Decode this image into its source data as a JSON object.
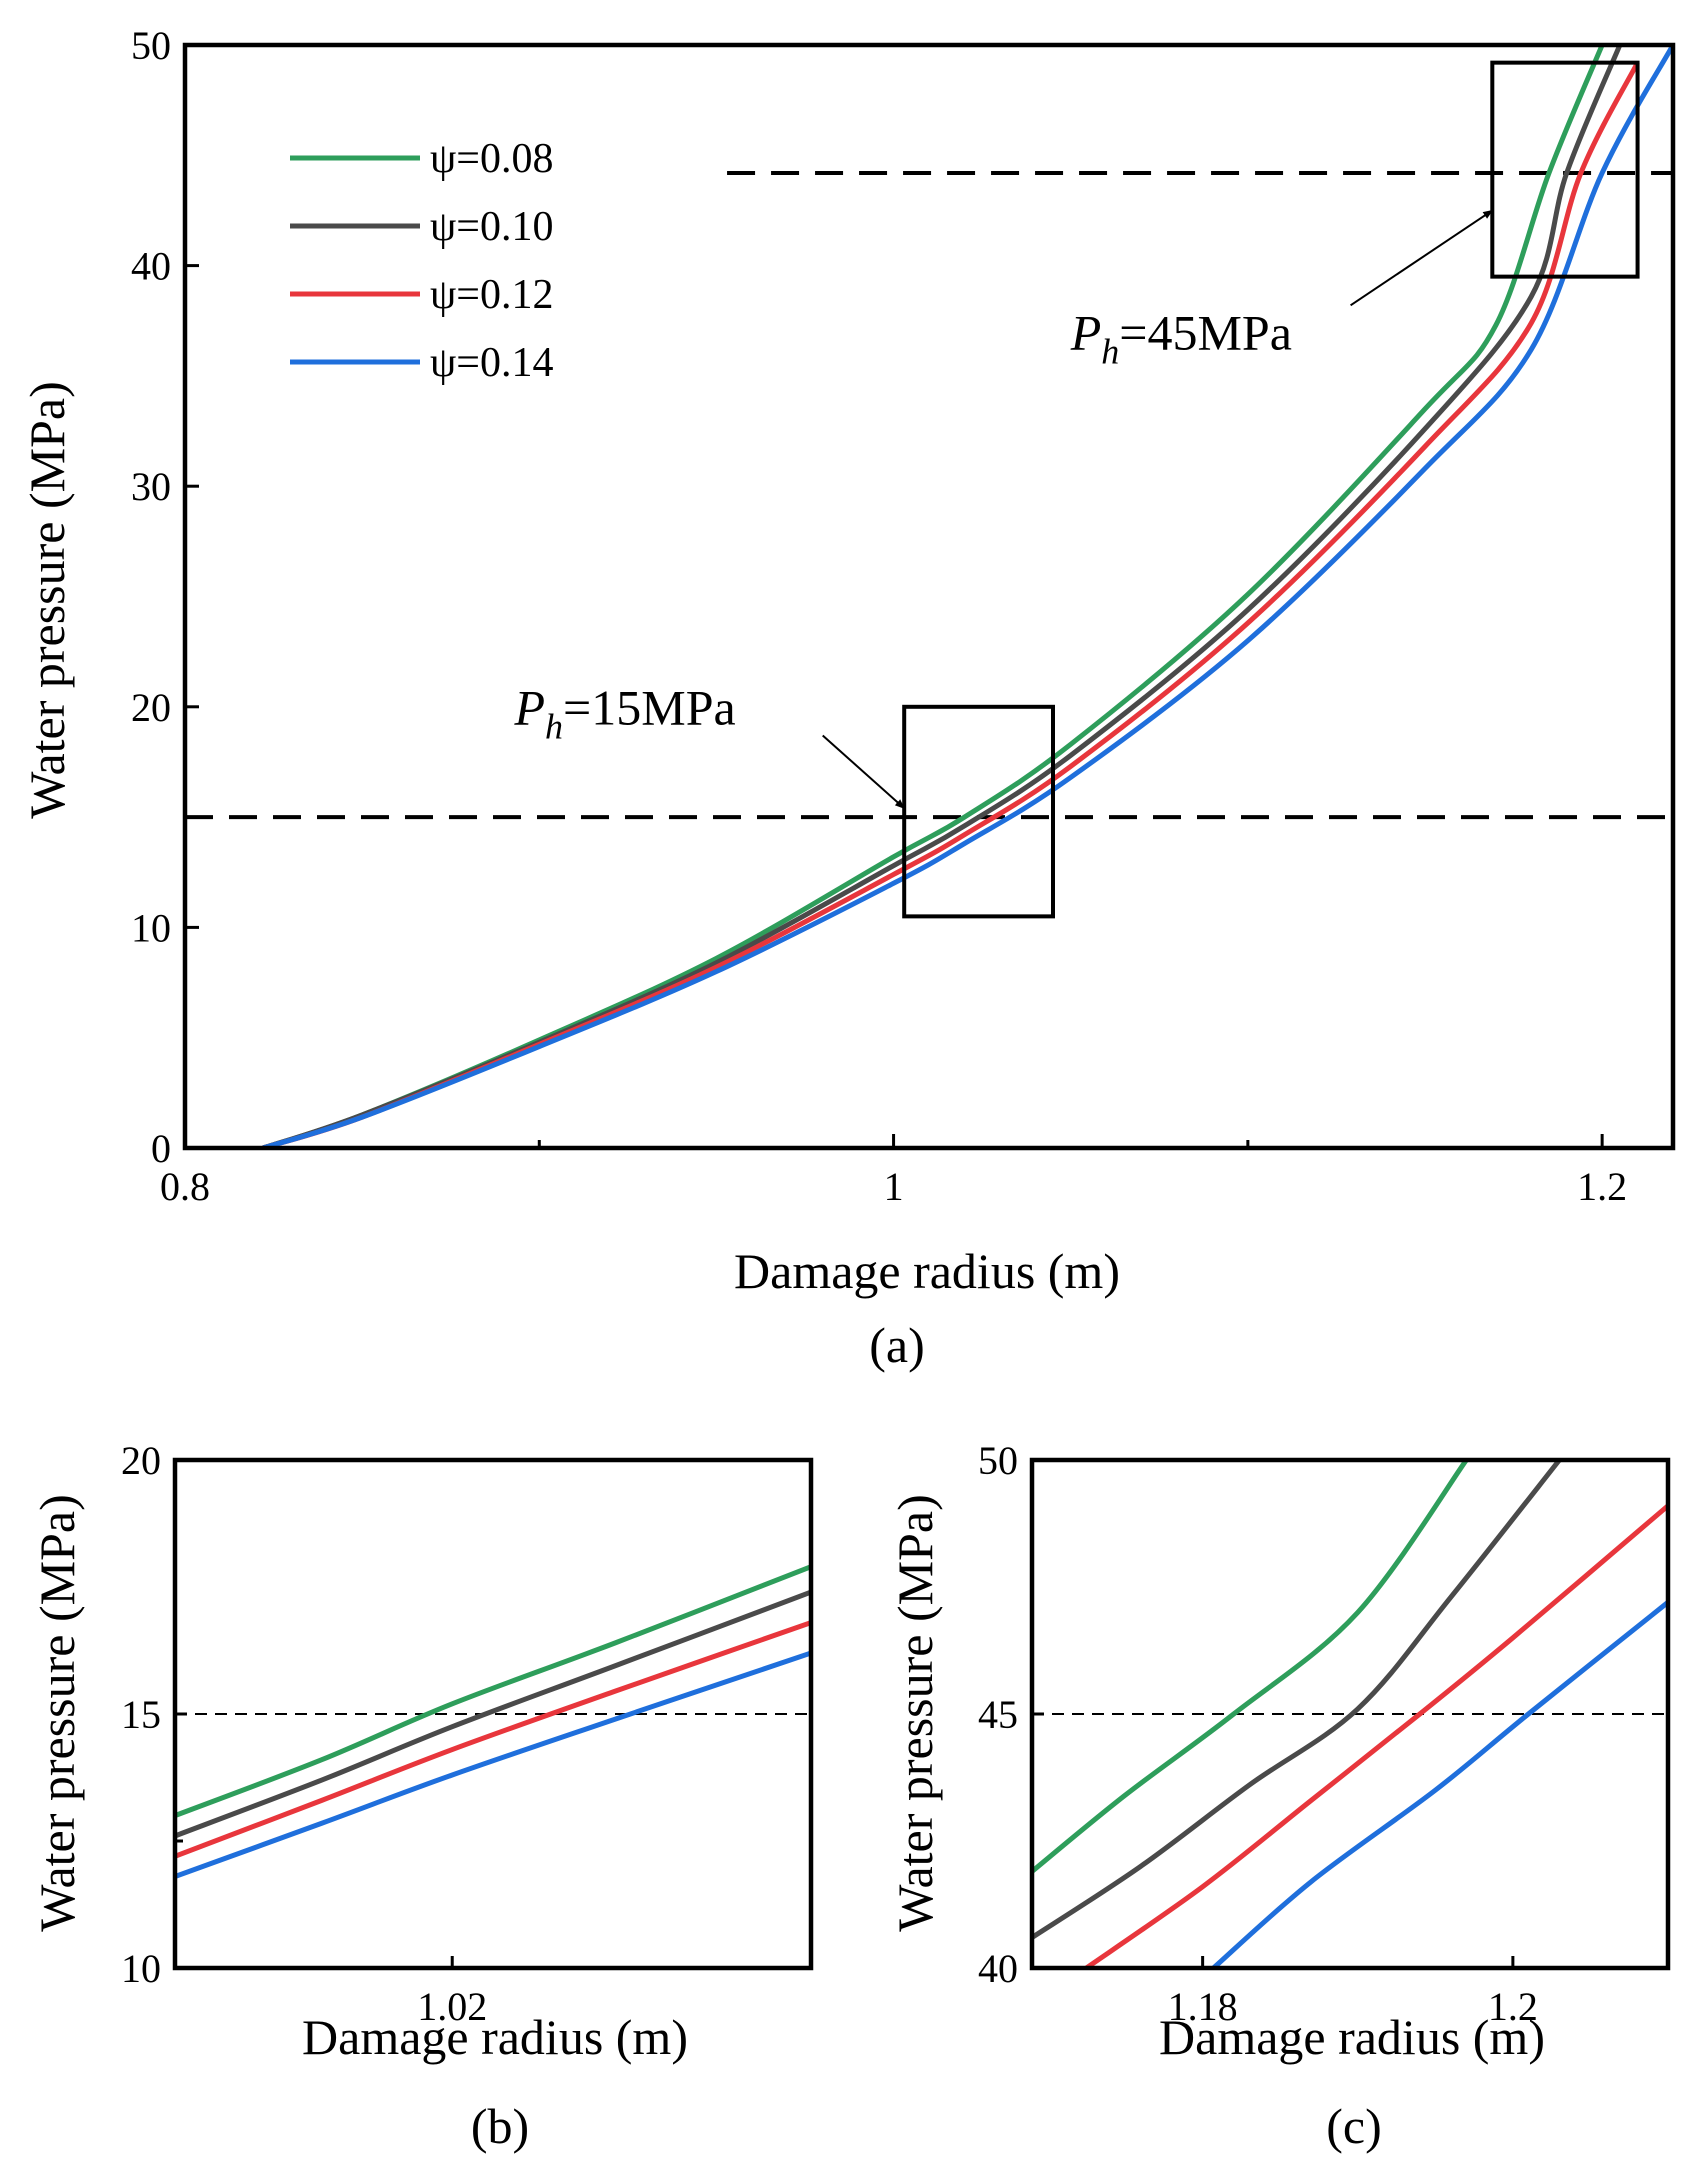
{
  "chart_data": [
    {
      "type": "line",
      "panel": "(a)",
      "xlabel": "Damage radius (m)",
      "ylabel": "Water pressure (MPa)",
      "xlim": [
        0.8,
        1.22
      ],
      "ylim": [
        0,
        50
      ],
      "xticks": [
        {
          "v": 0.8,
          "t": "0.8"
        },
        {
          "v": 1.0,
          "t": "1"
        },
        {
          "v": 1.2,
          "t": "1.2"
        }
      ],
      "xminor": [
        0.9,
        1.1
      ],
      "yticks": [
        {
          "v": 0,
          "t": "0"
        },
        {
          "v": 10,
          "t": "10"
        },
        {
          "v": 20,
          "t": "20"
        },
        {
          "v": 30,
          "t": "30"
        },
        {
          "v": 40,
          "t": "40"
        },
        {
          "v": 50,
          "t": "50"
        }
      ],
      "legend": {
        "position": "top-left",
        "entries": [
          "ψ=0.08",
          "ψ=0.10",
          "ψ=0.12",
          "ψ=0.14"
        ]
      },
      "series": [
        {
          "name": "ψ=0.08",
          "color": "#2e9e5b",
          "x": [
            0.822,
            0.85,
            0.9,
            0.95,
            1.0,
            1.02,
            1.05,
            1.1,
            1.15,
            1.17,
            1.185,
            1.2
          ],
          "y": [
            0,
            1.5,
            4.9,
            8.6,
            13.2,
            15.0,
            18.3,
            25.1,
            33.5,
            37.3,
            44.2,
            50
          ]
        },
        {
          "name": "ψ=0.10",
          "color": "#4a4a4a",
          "x": [
            0.822,
            0.85,
            0.9,
            0.95,
            1.0,
            1.02,
            1.05,
            1.1,
            1.15,
            1.18,
            1.19,
            1.205
          ],
          "y": [
            0,
            1.5,
            4.8,
            8.4,
            12.8,
            14.6,
            17.8,
            24.4,
            32.6,
            38.6,
            44.2,
            50
          ]
        },
        {
          "name": "ψ=0.12",
          "color": "#e8363c",
          "x": [
            0.822,
            0.85,
            0.9,
            0.95,
            1.0,
            1.02,
            1.05,
            1.1,
            1.15,
            1.18,
            1.194,
            1.21
          ],
          "y": [
            0,
            1.4,
            4.7,
            8.2,
            12.4,
            14.2,
            17.3,
            23.8,
            31.8,
            37.4,
            44.2,
            49.2
          ]
        },
        {
          "name": "ψ=0.14",
          "color": "#1f6fdc",
          "x": [
            0.822,
            0.85,
            0.9,
            0.95,
            1.0,
            1.02,
            1.05,
            1.1,
            1.15,
            1.18,
            1.2,
            1.22
          ],
          "y": [
            0,
            1.4,
            4.6,
            8.0,
            12.0,
            13.8,
            16.8,
            23.0,
            30.8,
            36.2,
            44.2,
            50
          ]
        }
      ],
      "reference_lines": [
        {
          "y": 15,
          "style": "dashed",
          "x_from": 0.8,
          "x_to": 1.22
        },
        {
          "y": 44.2,
          "style": "dashed",
          "x_from": 0.953,
          "x_to": 1.22
        }
      ],
      "zoom_boxes": [
        {
          "x0": 1.003,
          "x1": 1.045,
          "y0": 10.5,
          "y1": 20
        },
        {
          "x0": 1.169,
          "x1": 1.21,
          "y0": 39.5,
          "y1": 49.2
        }
      ],
      "annotations": [
        {
          "main": "P",
          "sub": "h",
          "rest": "=15MPa",
          "x": 0.893,
          "y": 19.2,
          "arrow_from": [
            0.98,
            18.7
          ],
          "arrow_to": [
            1.003,
            15.4
          ]
        },
        {
          "main": "P",
          "sub": "h",
          "rest": "=45MPa",
          "x": 1.05,
          "y": 36.2,
          "arrow_from": [
            1.129,
            38.2
          ],
          "arrow_to": [
            1.169,
            42.5
          ]
        }
      ]
    },
    {
      "type": "line",
      "panel": "(b)",
      "xlabel": "Damage radius (m)",
      "ylabel": "Water pressure (MPa)",
      "xlim": [
        1.003,
        1.042
      ],
      "ylim": [
        10,
        20
      ],
      "xticks": [
        {
          "v": 1.02,
          "t": "1.02"
        }
      ],
      "yticks": [
        {
          "v": 10,
          "t": "10"
        },
        {
          "v": 15,
          "t": "15"
        },
        {
          "v": 20,
          "t": "20"
        }
      ],
      "yminor": [
        12.5
      ],
      "series": [
        {
          "name": "ψ=0.08",
          "color": "#2e9e5b",
          "x": [
            1.003,
            1.012,
            1.02,
            1.03,
            1.042
          ],
          "y": [
            13.0,
            14.1,
            15.2,
            16.4,
            17.9
          ]
        },
        {
          "name": "ψ=0.10",
          "color": "#4a4a4a",
          "x": [
            1.003,
            1.012,
            1.02,
            1.03,
            1.042
          ],
          "y": [
            12.6,
            13.7,
            14.75,
            15.95,
            17.4
          ]
        },
        {
          "name": "ψ=0.12",
          "color": "#e8363c",
          "x": [
            1.003,
            1.012,
            1.02,
            1.03,
            1.042
          ],
          "y": [
            12.2,
            13.3,
            14.3,
            15.45,
            16.8
          ]
        },
        {
          "name": "ψ=0.14",
          "color": "#1f6fdc",
          "x": [
            1.003,
            1.012,
            1.02,
            1.03,
            1.042
          ],
          "y": [
            11.8,
            12.85,
            13.8,
            14.9,
            16.2
          ]
        }
      ],
      "reference_lines": [
        {
          "y": 15,
          "style": "dashed",
          "x_from": 1.003,
          "x_to": 1.042
        }
      ]
    },
    {
      "type": "line",
      "panel": "(c)",
      "xlabel": "Damage radius (m)",
      "ylabel": "Water pressure (MPa)",
      "xlim": [
        1.169,
        1.21
      ],
      "ylim": [
        40,
        50
      ],
      "xticks": [
        {
          "v": 1.18,
          "t": "1.18"
        },
        {
          "v": 1.2,
          "t": "1.2"
        }
      ],
      "yticks": [
        {
          "v": 40,
          "t": "40"
        },
        {
          "v": 45,
          "t": "45"
        },
        {
          "v": 50,
          "t": "50"
        }
      ],
      "series": [
        {
          "name": "ψ=0.08",
          "color": "#2e9e5b",
          "x": [
            1.169,
            1.175,
            1.182,
            1.19,
            1.197
          ],
          "y": [
            41.9,
            43.4,
            45.0,
            47.0,
            50.0
          ]
        },
        {
          "name": "ψ=0.10",
          "color": "#4a4a4a",
          "x": [
            1.169,
            1.176,
            1.183,
            1.19,
            1.196,
            1.203
          ],
          "y": [
            40.6,
            42.0,
            43.6,
            45.1,
            47.3,
            50.0
          ]
        },
        {
          "name": "ψ=0.12",
          "color": "#e8363c",
          "x": [
            1.1725,
            1.18,
            1.187,
            1.194,
            1.2,
            1.21
          ],
          "y": [
            40.0,
            41.6,
            43.3,
            45.0,
            46.5,
            49.1
          ]
        },
        {
          "name": "ψ=0.14",
          "color": "#1f6fdc",
          "x": [
            1.1807,
            1.187,
            1.195,
            1.201,
            1.21
          ],
          "y": [
            40.0,
            41.7,
            43.5,
            45.0,
            47.2
          ]
        }
      ],
      "reference_lines": [
        {
          "y": 45,
          "style": "dashed",
          "x_from": 1.169,
          "x_to": 1.21
        }
      ]
    }
  ]
}
